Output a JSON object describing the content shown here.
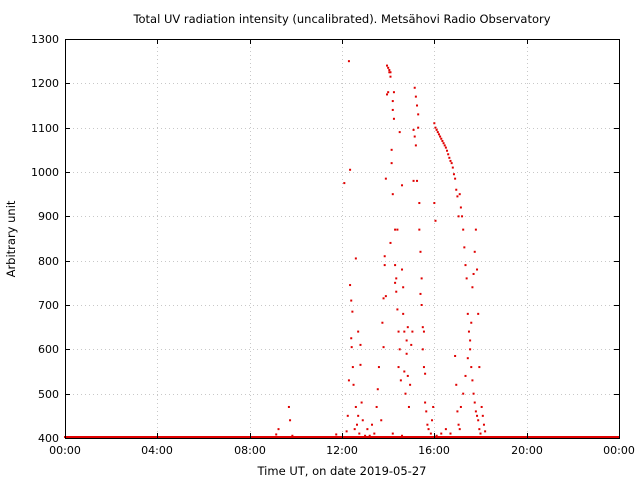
{
  "chart_data": {
    "type": "scatter",
    "title": "Total UV radiation intensity (uncalibrated). Metsähovi Radio Observatory",
    "xlabel": "Time UT, on date 2019-05-27",
    "ylabel": "Arbitrary unit",
    "xlim": [
      0,
      24
    ],
    "ylim": [
      400,
      1300
    ],
    "x_ticks": [
      0,
      4,
      8,
      12,
      16,
      20,
      24
    ],
    "x_tick_labels": [
      "00:00",
      "04:00",
      "08:00",
      "12:00",
      "16:00",
      "20:00",
      "00:00"
    ],
    "y_ticks": [
      400,
      500,
      600,
      700,
      800,
      900,
      1000,
      1100,
      1200,
      1300
    ],
    "y_tick_labels": [
      "400",
      "500",
      "600",
      "700",
      "800",
      "900",
      "1000",
      "1100",
      "1200",
      "1300"
    ],
    "grid": true,
    "series_color": "#e00000",
    "baseline": {
      "y": 400,
      "x_from": 0,
      "x_to": 24,
      "step": 0.05
    },
    "points": [
      [
        9.15,
        408
      ],
      [
        9.25,
        420
      ],
      [
        9.7,
        470
      ],
      [
        9.75,
        440
      ],
      [
        9.85,
        405
      ],
      [
        10.2,
        402
      ],
      [
        11.6,
        402
      ],
      [
        11.75,
        408
      ],
      [
        12.1,
        975
      ],
      [
        12.2,
        415
      ],
      [
        12.25,
        450
      ],
      [
        12.3,
        1250
      ],
      [
        12.3,
        530
      ],
      [
        12.35,
        1005
      ],
      [
        12.35,
        745
      ],
      [
        12.4,
        710
      ],
      [
        12.4,
        625
      ],
      [
        12.42,
        605
      ],
      [
        12.45,
        685
      ],
      [
        12.47,
        560
      ],
      [
        12.5,
        520
      ],
      [
        12.55,
        420
      ],
      [
        12.6,
        805
      ],
      [
        12.6,
        470
      ],
      [
        12.65,
        430
      ],
      [
        12.7,
        640
      ],
      [
        12.7,
        450
      ],
      [
        12.75,
        410
      ],
      [
        12.8,
        610
      ],
      [
        12.8,
        565
      ],
      [
        12.85,
        480
      ],
      [
        12.9,
        440
      ],
      [
        13.0,
        405
      ],
      [
        13.1,
        420
      ],
      [
        13.2,
        405
      ],
      [
        13.3,
        430
      ],
      [
        13.4,
        410
      ],
      [
        13.5,
        470
      ],
      [
        13.55,
        510
      ],
      [
        13.6,
        560
      ],
      [
        13.7,
        440
      ],
      [
        13.75,
        660
      ],
      [
        13.8,
        605
      ],
      [
        13.8,
        715
      ],
      [
        13.85,
        790
      ],
      [
        13.85,
        810
      ],
      [
        13.9,
        720
      ],
      [
        13.9,
        985
      ],
      [
        13.95,
        1240
      ],
      [
        13.95,
        1175
      ],
      [
        14.0,
        1235
      ],
      [
        14.0,
        1180
      ],
      [
        14.05,
        1230
      ],
      [
        14.05,
        1225
      ],
      [
        14.1,
        1225
      ],
      [
        14.1,
        1215
      ],
      [
        14.1,
        840
      ],
      [
        14.15,
        1050
      ],
      [
        14.15,
        1020
      ],
      [
        14.2,
        1160
      ],
      [
        14.2,
        1140
      ],
      [
        14.2,
        950
      ],
      [
        14.25,
        1180
      ],
      [
        14.25,
        1120
      ],
      [
        14.3,
        870
      ],
      [
        14.3,
        790
      ],
      [
        14.3,
        750
      ],
      [
        14.35,
        760
      ],
      [
        14.35,
        730
      ],
      [
        14.4,
        690
      ],
      [
        14.4,
        870
      ],
      [
        14.45,
        640
      ],
      [
        14.45,
        560
      ],
      [
        14.5,
        1090
      ],
      [
        14.5,
        600
      ],
      [
        14.55,
        530
      ],
      [
        14.6,
        970
      ],
      [
        14.6,
        780
      ],
      [
        14.65,
        740
      ],
      [
        14.65,
        680
      ],
      [
        14.7,
        640
      ],
      [
        14.7,
        550
      ],
      [
        14.75,
        500
      ],
      [
        14.8,
        620
      ],
      [
        14.8,
        590
      ],
      [
        14.85,
        650
      ],
      [
        14.85,
        540
      ],
      [
        14.9,
        470
      ],
      [
        14.95,
        520
      ],
      [
        15.0,
        610
      ],
      [
        15.05,
        640
      ],
      [
        15.1,
        1095
      ],
      [
        15.1,
        980
      ],
      [
        15.15,
        1190
      ],
      [
        15.15,
        1080
      ],
      [
        15.2,
        1170
      ],
      [
        15.2,
        1060
      ],
      [
        15.25,
        1150
      ],
      [
        15.25,
        980
      ],
      [
        15.3,
        1130
      ],
      [
        15.3,
        1100
      ],
      [
        15.35,
        930
      ],
      [
        15.35,
        870
      ],
      [
        15.4,
        820
      ],
      [
        15.4,
        725
      ],
      [
        15.45,
        760
      ],
      [
        15.45,
        700
      ],
      [
        15.5,
        650
      ],
      [
        15.5,
        600
      ],
      [
        15.55,
        640
      ],
      [
        15.55,
        560
      ],
      [
        15.6,
        545
      ],
      [
        15.6,
        480
      ],
      [
        15.65,
        460
      ],
      [
        15.7,
        430
      ],
      [
        15.75,
        420
      ],
      [
        15.8,
        400
      ],
      [
        15.85,
        410
      ],
      [
        15.9,
        440
      ],
      [
        15.95,
        470
      ],
      [
        16.0,
        1110
      ],
      [
        16.0,
        930
      ],
      [
        16.05,
        1100
      ],
      [
        16.05,
        890
      ],
      [
        16.1,
        1095
      ],
      [
        16.15,
        1090
      ],
      [
        16.2,
        1085
      ],
      [
        16.25,
        1080
      ],
      [
        16.3,
        1075
      ],
      [
        16.35,
        1070
      ],
      [
        16.4,
        1065
      ],
      [
        16.45,
        1060
      ],
      [
        16.5,
        1055
      ],
      [
        16.55,
        1048
      ],
      [
        16.6,
        1040
      ],
      [
        16.65,
        1032
      ],
      [
        16.7,
        1025
      ],
      [
        16.75,
        1020
      ],
      [
        16.8,
        1010
      ],
      [
        16.85,
        995
      ],
      [
        16.9,
        985
      ],
      [
        16.95,
        960
      ],
      [
        17.0,
        945
      ],
      [
        17.05,
        900
      ],
      [
        17.1,
        950
      ],
      [
        17.15,
        920
      ],
      [
        17.2,
        900
      ],
      [
        17.25,
        870
      ],
      [
        17.3,
        830
      ],
      [
        17.35,
        790
      ],
      [
        17.4,
        760
      ],
      [
        17.45,
        680
      ],
      [
        17.5,
        640
      ],
      [
        17.55,
        600
      ],
      [
        17.6,
        560
      ],
      [
        17.65,
        530
      ],
      [
        17.7,
        500
      ],
      [
        17.75,
        480
      ],
      [
        17.8,
        460
      ],
      [
        17.85,
        450
      ],
      [
        17.9,
        440
      ],
      [
        17.95,
        420
      ],
      [
        18.0,
        410
      ],
      [
        16.9,
        585
      ],
      [
        16.95,
        520
      ],
      [
        17.0,
        460
      ],
      [
        17.05,
        430
      ],
      [
        17.1,
        420
      ],
      [
        17.15,
        470
      ],
      [
        17.25,
        500
      ],
      [
        17.35,
        540
      ],
      [
        17.45,
        580
      ],
      [
        17.55,
        620
      ],
      [
        17.6,
        660
      ],
      [
        17.65,
        740
      ],
      [
        17.7,
        770
      ],
      [
        17.75,
        820
      ],
      [
        17.8,
        870
      ],
      [
        17.85,
        780
      ],
      [
        17.9,
        680
      ],
      [
        17.95,
        560
      ],
      [
        18.05,
        470
      ],
      [
        18.1,
        450
      ],
      [
        18.15,
        430
      ],
      [
        18.2,
        415
      ],
      [
        16.0,
        400
      ],
      [
        16.1,
        405
      ],
      [
        16.3,
        410
      ],
      [
        16.5,
        420
      ],
      [
        16.7,
        410
      ],
      [
        15.0,
        402
      ],
      [
        14.6,
        405
      ],
      [
        14.2,
        410
      ],
      [
        13.7,
        402
      ]
    ]
  }
}
